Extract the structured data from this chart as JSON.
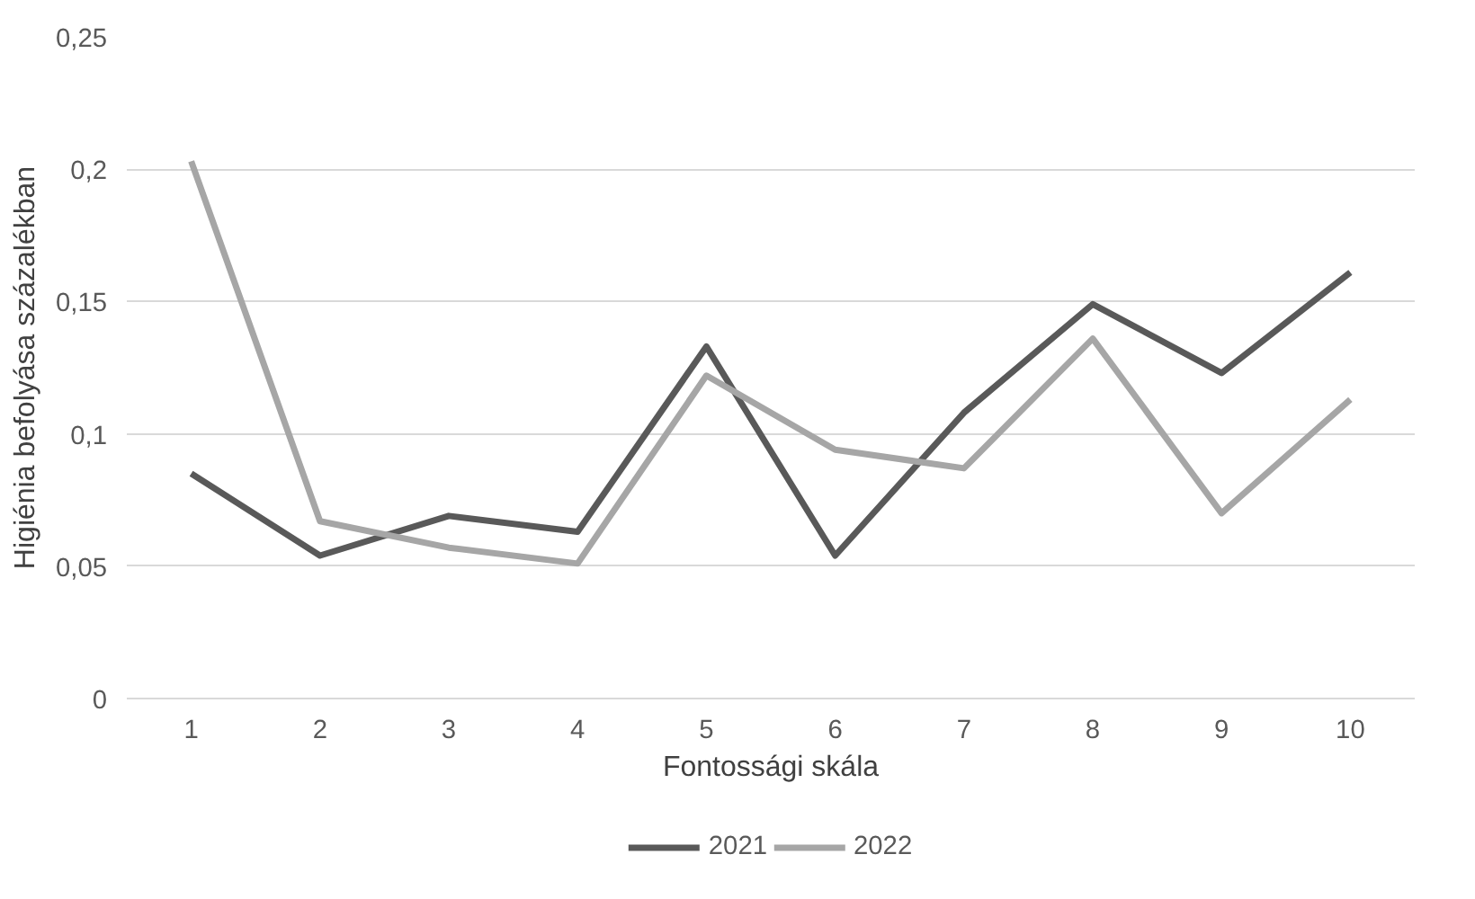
{
  "chart_data": {
    "type": "line",
    "xlabel": "Fontossági skála",
    "ylabel": "Higiénia befolyása százalékban",
    "categories": [
      "1",
      "2",
      "3",
      "4",
      "5",
      "6",
      "7",
      "8",
      "9",
      "10"
    ],
    "series": [
      {
        "name": "2021",
        "color": "#595959",
        "values": [
          0.085,
          0.054,
          0.069,
          0.063,
          0.133,
          0.054,
          0.108,
          0.149,
          0.123,
          0.161
        ]
      },
      {
        "name": "2022",
        "color": "#a6a6a6",
        "values": [
          0.203,
          0.067,
          0.057,
          0.051,
          0.122,
          0.094,
          0.087,
          0.136,
          0.07,
          0.113
        ]
      }
    ],
    "ylim": [
      0,
      0.25
    ],
    "yticks": [
      {
        "value": 0,
        "label": "0"
      },
      {
        "value": 0.05,
        "label": "0,05"
      },
      {
        "value": 0.1,
        "label": "0,1"
      },
      {
        "value": 0.15,
        "label": "0,15"
      },
      {
        "value": 0.2,
        "label": "0,2"
      },
      {
        "value": 0.25,
        "label": "0,25"
      }
    ],
    "grid": "y",
    "legend": "bottom",
    "marker": "none",
    "line_style": "solid"
  }
}
